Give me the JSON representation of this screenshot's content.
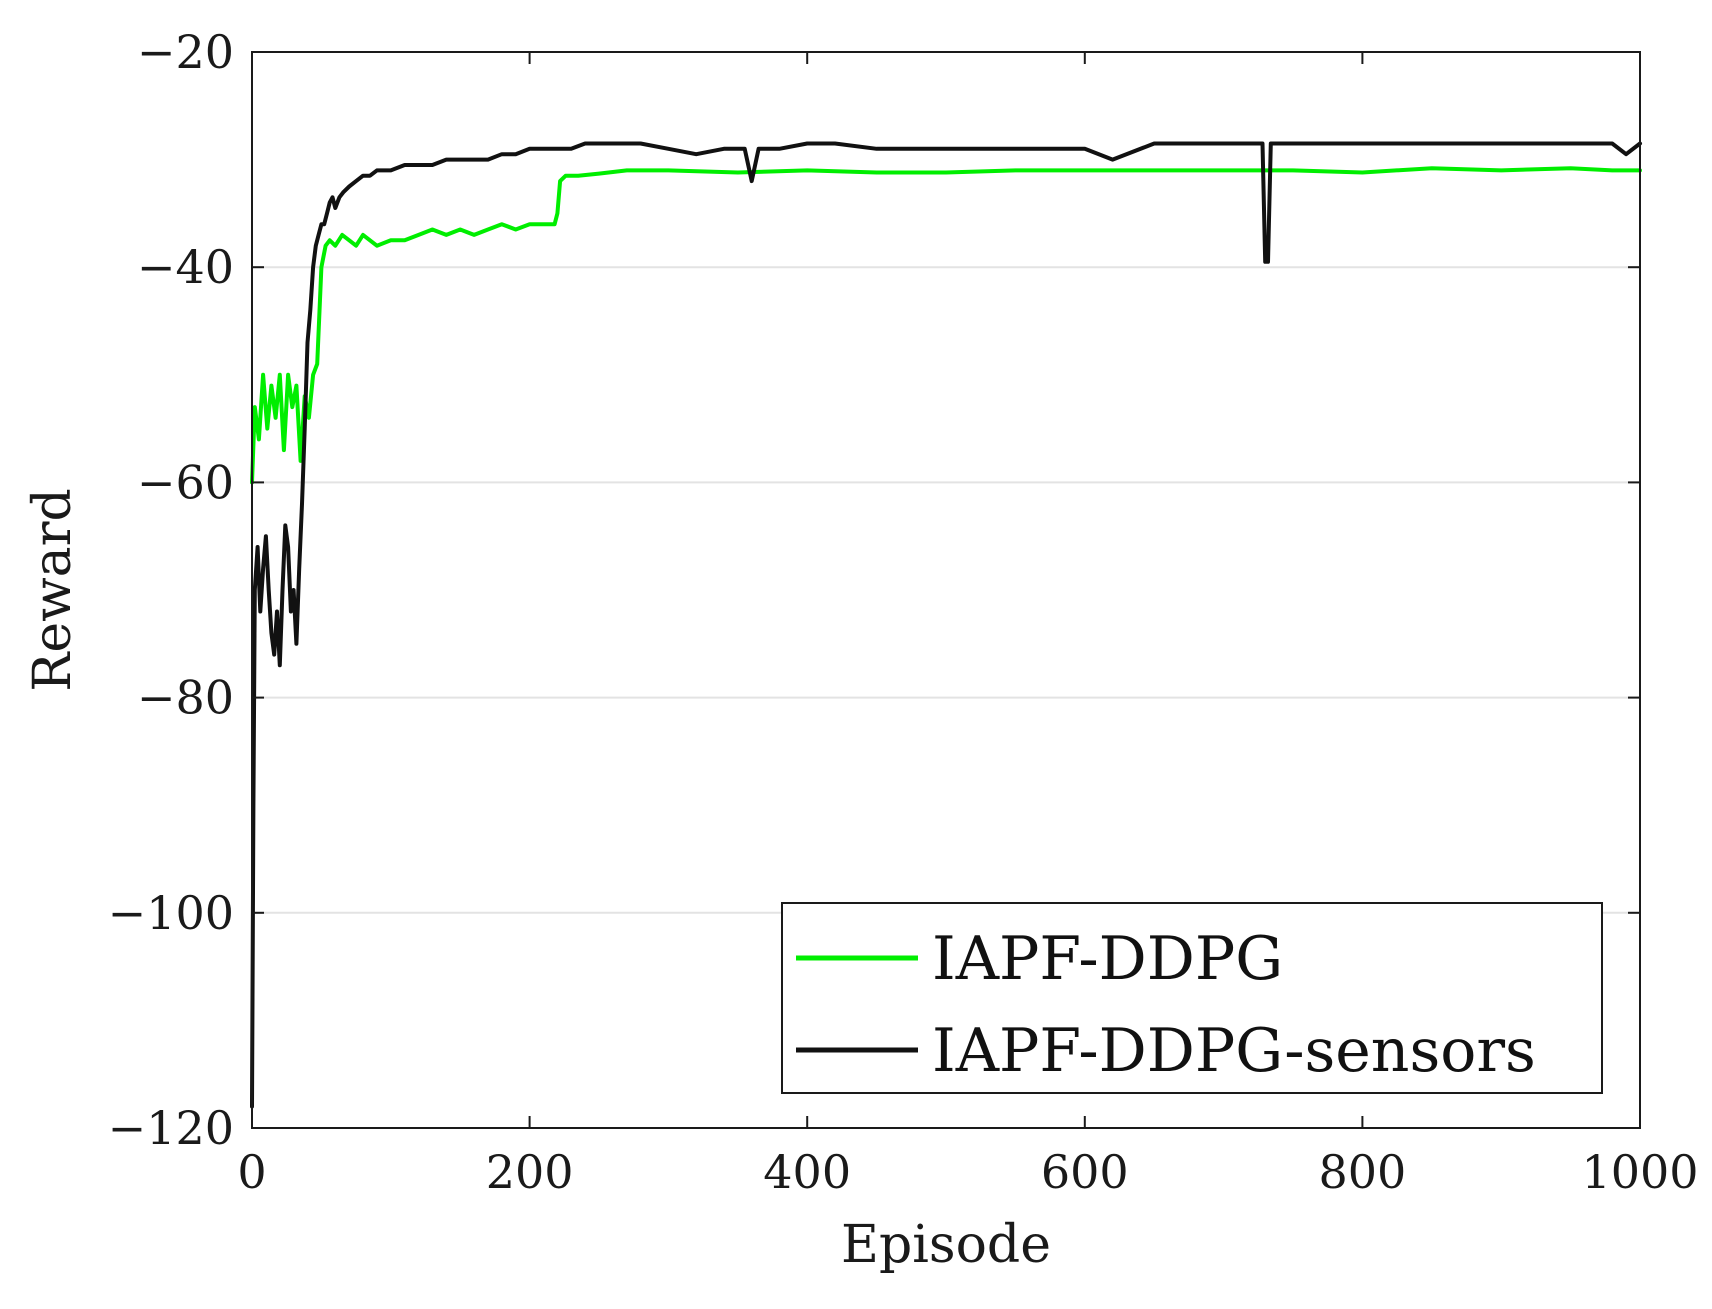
{
  "chart_data": {
    "type": "line",
    "title": "",
    "xlabel": "Episode",
    "ylabel": "Reward",
    "xlim": [
      0,
      1000
    ],
    "ylim": [
      -120,
      -20
    ],
    "xticks": [
      0,
      200,
      400,
      600,
      800,
      1000
    ],
    "yticks": [
      -120,
      -100,
      -80,
      -60,
      -40,
      -20
    ],
    "xtick_labels": [
      "0",
      "200",
      "400",
      "600",
      "800",
      "1000"
    ],
    "ytick_labels": [
      "−120",
      "−100",
      "−80",
      "−60",
      "−40",
      "−20"
    ],
    "grid": "horizontal",
    "legend_position": "bottom-right",
    "series": [
      {
        "name": "IAPF-DDPG",
        "color": "#00ee00",
        "x": [
          0,
          2,
          5,
          8,
          11,
          14,
          17,
          20,
          23,
          26,
          29,
          32,
          35,
          38,
          41,
          44,
          47,
          50,
          53,
          56,
          60,
          65,
          70,
          75,
          80,
          90,
          100,
          110,
          120,
          130,
          140,
          150,
          160,
          170,
          180,
          190,
          200,
          210,
          218,
          220,
          222,
          226,
          235,
          250,
          270,
          300,
          350,
          400,
          450,
          500,
          550,
          600,
          650,
          700,
          750,
          800,
          850,
          900,
          950,
          980,
          1000
        ],
        "y": [
          -60,
          -53,
          -56,
          -50,
          -55,
          -51,
          -54,
          -50,
          -57,
          -50,
          -53,
          -51,
          -58,
          -52,
          -54,
          -50,
          -49,
          -40,
          -38,
          -37.5,
          -38,
          -37,
          -37.5,
          -38,
          -37,
          -38,
          -37.5,
          -37.5,
          -37,
          -36.5,
          -37,
          -36.5,
          -37,
          -36.5,
          -36,
          -36.5,
          -36,
          -36,
          -36,
          -35,
          -32,
          -31.5,
          -31.5,
          -31.3,
          -31,
          -31,
          -31.2,
          -31,
          -31.2,
          -31.2,
          -31,
          -31,
          -31,
          -31,
          -31,
          -31.2,
          -30.8,
          -31,
          -30.8,
          -31,
          -31
        ]
      },
      {
        "name": "IAPF-DDPG-sensors",
        "color": "#111111",
        "x": [
          0,
          1,
          2,
          4,
          6,
          8,
          10,
          12,
          14,
          16,
          18,
          20,
          22,
          24,
          26,
          28,
          30,
          32,
          34,
          36,
          38,
          40,
          42,
          44,
          46,
          48,
          50,
          52,
          54,
          56,
          58,
          60,
          63,
          66,
          70,
          75,
          80,
          85,
          90,
          100,
          110,
          120,
          130,
          140,
          150,
          160,
          170,
          180,
          190,
          200,
          210,
          220,
          230,
          240,
          250,
          260,
          270,
          280,
          300,
          320,
          340,
          355,
          360,
          365,
          370,
          380,
          400,
          420,
          450,
          480,
          500,
          550,
          600,
          620,
          650,
          700,
          720,
          728,
          730,
          732,
          734,
          736,
          740,
          760,
          800,
          850,
          900,
          950,
          980,
          990,
          1000
        ],
        "y": [
          -118,
          -90,
          -70,
          -66,
          -72,
          -68,
          -65,
          -70,
          -74,
          -76,
          -72,
          -77,
          -70,
          -64,
          -66,
          -72,
          -70,
          -75,
          -68,
          -62,
          -55,
          -47,
          -44,
          -40,
          -38,
          -37,
          -36,
          -36,
          -35,
          -34,
          -33.5,
          -34.5,
          -33.5,
          -33,
          -32.5,
          -32,
          -31.5,
          -31.5,
          -31,
          -31,
          -30.5,
          -30.5,
          -30.5,
          -30,
          -30,
          -30,
          -30,
          -29.5,
          -29.5,
          -29,
          -29,
          -29,
          -29,
          -28.5,
          -28.5,
          -28.5,
          -28.5,
          -28.5,
          -29,
          -29.5,
          -29,
          -29,
          -32,
          -29,
          -29,
          -29,
          -28.5,
          -28.5,
          -29,
          -29,
          -29,
          -29,
          -29,
          -30,
          -28.5,
          -28.5,
          -28.5,
          -28.5,
          -39.5,
          -39.5,
          -28.5,
          -28.5,
          -28.5,
          -28.5,
          -28.5,
          -28.5,
          -28.5,
          -28.5,
          -28.5,
          -29.5,
          -28.5
        ]
      }
    ]
  }
}
